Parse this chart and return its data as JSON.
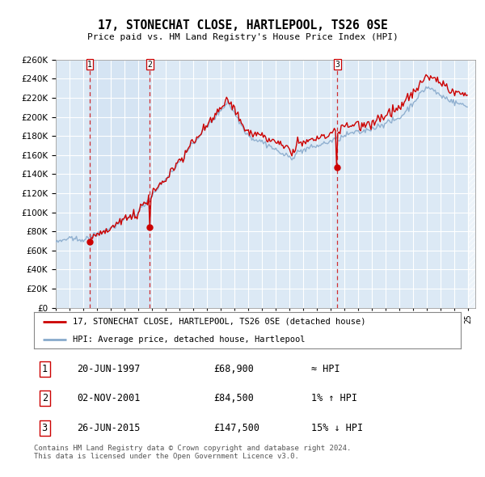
{
  "title": "17, STONECHAT CLOSE, HARTLEPOOL, TS26 0SE",
  "subtitle": "Price paid vs. HM Land Registry's House Price Index (HPI)",
  "ylim": [
    0,
    260000
  ],
  "xlim_start": 1995.0,
  "xlim_end": 2025.5,
  "sale_prices": [
    68900,
    84500,
    147500
  ],
  "sale_labels": [
    "1",
    "2",
    "3"
  ],
  "sale_year_floats": [
    1997.47,
    2001.84,
    2015.48
  ],
  "line1_label": "17, STONECHAT CLOSE, HARTLEPOOL, TS26 0SE (detached house)",
  "line2_label": "HPI: Average price, detached house, Hartlepool",
  "line1_color": "#cc0000",
  "line2_color": "#88aacc",
  "bg_color": "#dce9f5",
  "bg_color_between": "#d0e4f5",
  "grid_color": "#ffffff",
  "footer": "Contains HM Land Registry data © Crown copyright and database right 2024.\nThis data is licensed under the Open Government Licence v3.0.",
  "table_entries": [
    [
      "1",
      "20-JUN-1997",
      "£68,900",
      "≈ HPI"
    ],
    [
      "2",
      "02-NOV-2001",
      "£84,500",
      "1% ↑ HPI"
    ],
    [
      "3",
      "26-JUN-2015",
      "£147,500",
      "15% ↓ HPI"
    ]
  ]
}
